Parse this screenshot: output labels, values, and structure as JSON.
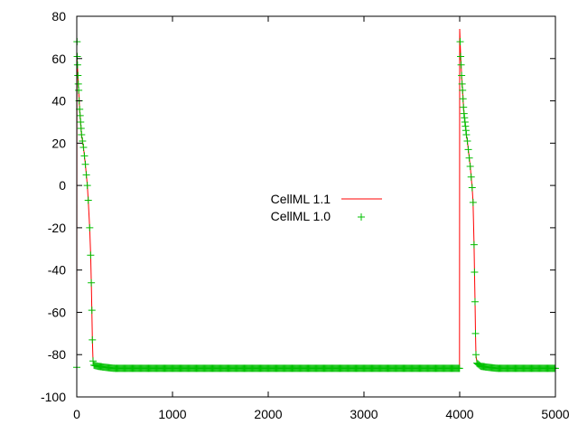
{
  "chart_data": {
    "type": "line",
    "title": "",
    "xlabel": "",
    "ylabel": "",
    "xlim": [
      0,
      5000
    ],
    "ylim": [
      -100,
      80
    ],
    "xticks": [
      0,
      1000,
      2000,
      3000,
      4000,
      5000
    ],
    "yticks": [
      -100,
      -80,
      -60,
      -40,
      -20,
      0,
      20,
      40,
      60,
      80
    ],
    "grid": false,
    "legend_position": "center",
    "series": [
      {
        "name": "CellML 1.1",
        "style": "line",
        "color": "#ff0000",
        "points": [
          [
            0,
            -86
          ],
          [
            1,
            -9
          ],
          [
            2,
            50
          ],
          [
            3,
            60
          ],
          [
            5,
            58
          ],
          [
            8,
            56
          ],
          [
            12,
            52
          ],
          [
            16,
            48
          ],
          [
            20,
            45
          ],
          [
            25,
            40
          ],
          [
            30,
            36
          ],
          [
            35,
            33
          ],
          [
            40,
            30
          ],
          [
            45,
            27
          ],
          [
            50,
            24
          ],
          [
            60,
            21
          ],
          [
            70,
            18
          ],
          [
            80,
            14
          ],
          [
            90,
            10
          ],
          [
            100,
            5
          ],
          [
            110,
            0
          ],
          [
            120,
            -7
          ],
          [
            135,
            -20
          ],
          [
            145,
            -33
          ],
          [
            152,
            -46
          ],
          [
            158,
            -59
          ],
          [
            163,
            -73
          ],
          [
            170,
            -83
          ],
          [
            180,
            -85
          ],
          [
            220,
            -85.5
          ],
          [
            300,
            -86
          ],
          [
            400,
            -86.5
          ],
          [
            3998,
            -86.5
          ],
          [
            4000,
            74
          ],
          [
            4005,
            68
          ],
          [
            4010,
            61
          ],
          [
            4015,
            57
          ],
          [
            4020,
            52
          ],
          [
            4025,
            48
          ],
          [
            4030,
            45
          ],
          [
            4035,
            41
          ],
          [
            4040,
            37
          ],
          [
            4045,
            34
          ],
          [
            4050,
            32
          ],
          [
            4055,
            30
          ],
          [
            4060,
            28
          ],
          [
            4065,
            26
          ],
          [
            4070,
            24
          ],
          [
            4080,
            21
          ],
          [
            4090,
            17
          ],
          [
            4100,
            13
          ],
          [
            4110,
            9
          ],
          [
            4120,
            4
          ],
          [
            4130,
            -1
          ],
          [
            4140,
            -8
          ],
          [
            4150,
            -28
          ],
          [
            4155,
            -41
          ],
          [
            4160,
            -55
          ],
          [
            4165,
            -70
          ],
          [
            4170,
            -80
          ],
          [
            4180,
            -84
          ],
          [
            4220,
            -85.5
          ],
          [
            4300,
            -86
          ],
          [
            4400,
            -86.5
          ],
          [
            5000,
            -86.5
          ]
        ]
      },
      {
        "name": "CellML 1.0",
        "style": "points",
        "color": "#00c000",
        "points": [
          [
            0,
            -86
          ],
          [
            3,
            68
          ],
          [
            5,
            61
          ],
          [
            8,
            57
          ],
          [
            12,
            52
          ],
          [
            16,
            48
          ],
          [
            20,
            45
          ],
          [
            25,
            40
          ],
          [
            30,
            36
          ],
          [
            35,
            33
          ],
          [
            40,
            30
          ],
          [
            45,
            27
          ],
          [
            50,
            24
          ],
          [
            60,
            21
          ],
          [
            70,
            18
          ],
          [
            80,
            14
          ],
          [
            90,
            10
          ],
          [
            100,
            5
          ],
          [
            110,
            0
          ],
          [
            120,
            -7
          ],
          [
            135,
            -20
          ],
          [
            145,
            -33
          ],
          [
            152,
            -46
          ],
          [
            158,
            -59
          ],
          [
            163,
            -73
          ],
          [
            170,
            -83
          ],
          [
            180,
            -85
          ],
          [
            220,
            -85.5
          ],
          [
            300,
            -86
          ],
          [
            400,
            -86.5
          ],
          [
            3998,
            -86.5
          ],
          [
            4005,
            68
          ],
          [
            4010,
            61
          ],
          [
            4015,
            57
          ],
          [
            4020,
            52
          ],
          [
            4025,
            48
          ],
          [
            4030,
            45
          ],
          [
            4035,
            41
          ],
          [
            4040,
            37
          ],
          [
            4045,
            34
          ],
          [
            4050,
            32
          ],
          [
            4055,
            30
          ],
          [
            4060,
            28
          ],
          [
            4065,
            26
          ],
          [
            4070,
            24
          ],
          [
            4080,
            21
          ],
          [
            4090,
            17
          ],
          [
            4100,
            13
          ],
          [
            4110,
            9
          ],
          [
            4120,
            4
          ],
          [
            4130,
            -1
          ],
          [
            4140,
            -8
          ],
          [
            4150,
            -28
          ],
          [
            4155,
            -41
          ],
          [
            4160,
            -55
          ],
          [
            4165,
            -70
          ],
          [
            4170,
            -80
          ],
          [
            4180,
            -84
          ],
          [
            4220,
            -85.5
          ],
          [
            4300,
            -86
          ],
          [
            4400,
            -86.5
          ],
          [
            5000,
            -86.5
          ]
        ]
      }
    ]
  }
}
